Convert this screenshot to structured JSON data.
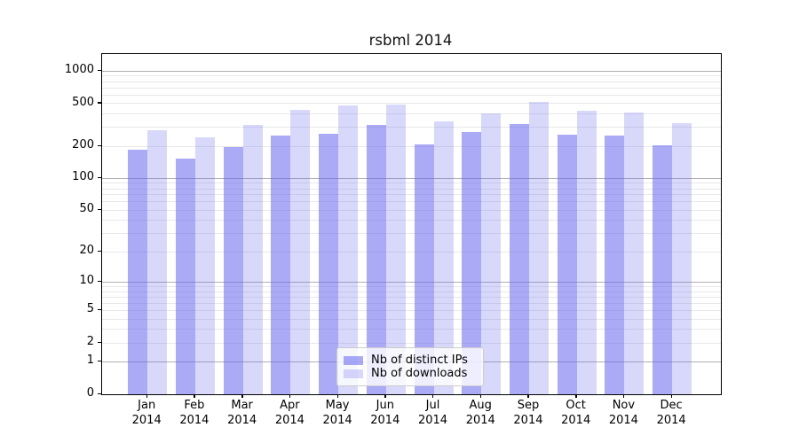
{
  "title": "rsbml 2014",
  "chart_data": {
    "type": "bar",
    "title": "rsbml 2014",
    "categories": [
      "Jan",
      "Feb",
      "Mar",
      "Apr",
      "May",
      "Jun",
      "Jul",
      "Aug",
      "Sep",
      "Oct",
      "Nov",
      "Dec"
    ],
    "year": "2014",
    "series": [
      {
        "name": "Nb of distinct IPs",
        "color": "rgba(100,100,240,0.55)",
        "values": [
          186,
          153,
          197,
          250,
          260,
          318,
          207,
          270,
          321,
          256,
          253,
          203
        ]
      },
      {
        "name": "Nb of downloads",
        "color": "rgba(100,100,240,0.25)",
        "values": [
          284,
          241,
          316,
          435,
          480,
          486,
          341,
          402,
          522,
          431,
          415,
          330
        ]
      }
    ],
    "yticks": [
      0,
      1,
      2,
      5,
      10,
      20,
      50,
      100,
      200,
      500,
      1000
    ],
    "ylabel": "",
    "xlabel": "",
    "scale": "log1p",
    "ylim": [
      0,
      1442
    ],
    "grid": "on",
    "gridline_major_color": "#b0b0b0",
    "gridline_minor_color": "#e8e8e8",
    "legend_position": "inside-bottom-center"
  }
}
